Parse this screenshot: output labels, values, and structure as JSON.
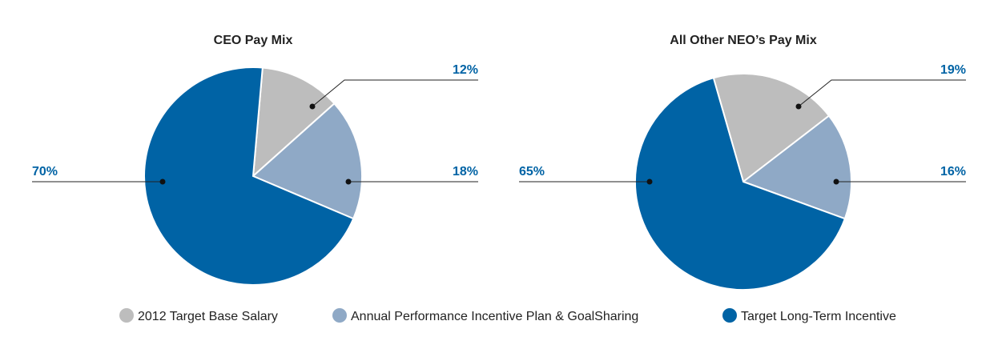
{
  "colors": {
    "base_salary": "#bdbdbd",
    "annual_incentive": "#8fa9c6",
    "long_term": "#0063a5",
    "label_text": "#0063a5",
    "leader_line": "#222222"
  },
  "legend": {
    "items": [
      {
        "label": "2012 Target Base Salary",
        "color": "#bdbdbd"
      },
      {
        "label": "Annual Performance Incentive Plan & GoalSharing",
        "color": "#8fa9c6"
      },
      {
        "label": "Target Long-Term Incentive",
        "color": "#0063a5"
      }
    ]
  },
  "chart_data": [
    {
      "type": "pie",
      "title": "CEO Pay Mix",
      "slices": [
        {
          "label": "2012 Target Base Salary",
          "value": 12,
          "display": "12%",
          "color": "#bdbdbd"
        },
        {
          "label": "Annual Performance Incentive Plan & GoalSharing",
          "value": 18,
          "display": "18%",
          "color": "#8fa9c6"
        },
        {
          "label": "Target Long-Term Incentive",
          "value": 70,
          "display": "70%",
          "color": "#0063a5"
        }
      ]
    },
    {
      "type": "pie",
      "title": "All Other NEO’s Pay Mix",
      "slices": [
        {
          "label": "2012 Target Base Salary",
          "value": 19,
          "display": "19%",
          "color": "#bdbdbd"
        },
        {
          "label": "Annual Performance Incentive Plan & GoalSharing",
          "value": 16,
          "display": "16%",
          "color": "#8fa9c6"
        },
        {
          "label": "Target Long-Term Incentive",
          "value": 65,
          "display": "65%",
          "color": "#0063a5"
        }
      ]
    }
  ]
}
